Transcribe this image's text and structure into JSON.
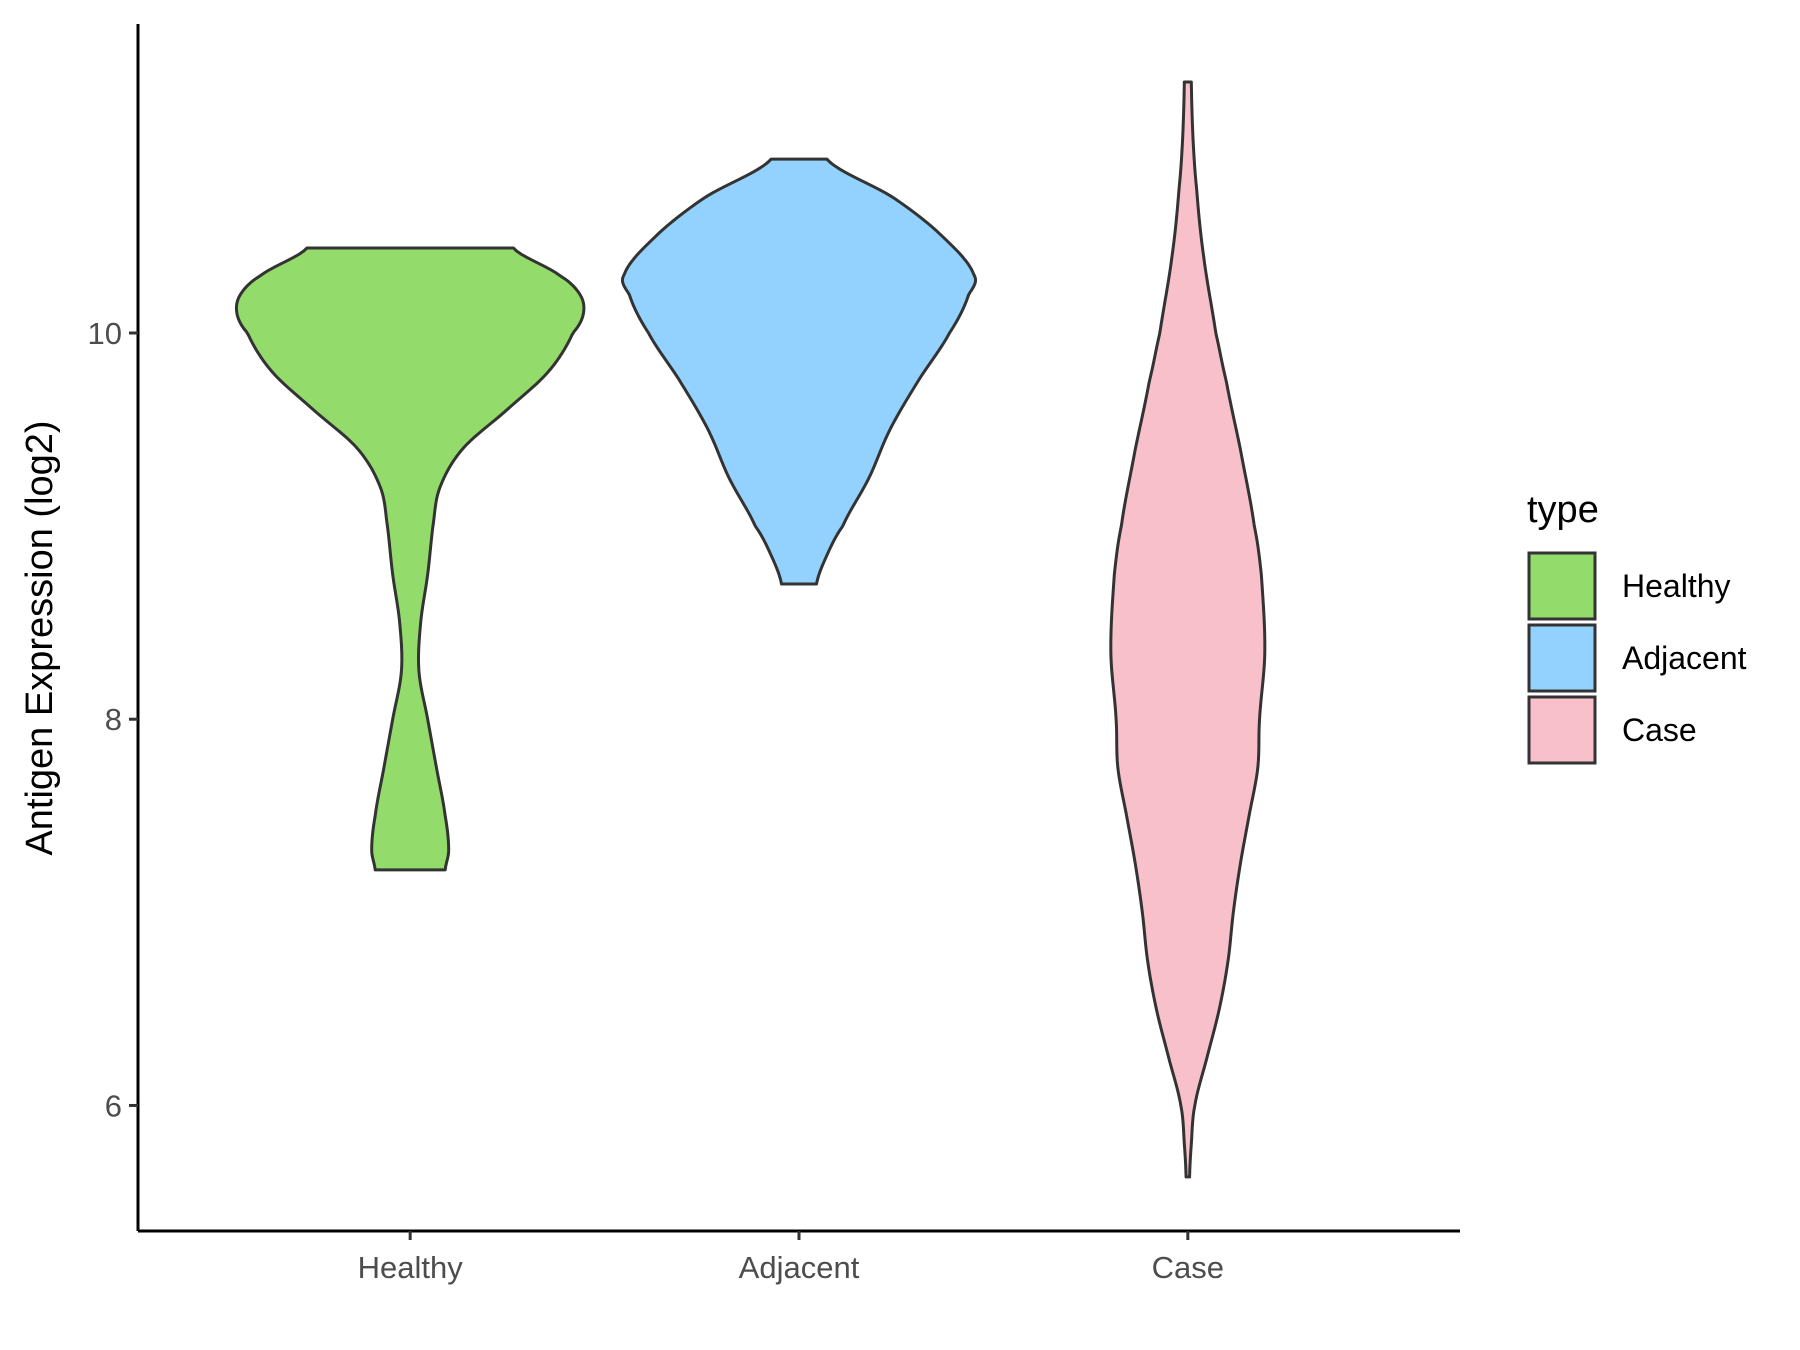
{
  "chart_data": {
    "type": "violin",
    "title": "",
    "xlabel": "",
    "ylabel": "Antigen Expression (log2)",
    "categories": [
      "Healthy",
      "Adjacent",
      "Case"
    ],
    "yticks": [
      "6",
      "8",
      "10"
    ],
    "ylim": [
      5.35,
      11.6
    ],
    "grid": false,
    "legend": {
      "title": "type",
      "position": "right",
      "items": [
        {
          "label": "Healthy",
          "color": "#93dc6b"
        },
        {
          "label": "Adjacent",
          "color": "#93d2fe"
        },
        {
          "label": "Case",
          "color": "#f7c0cb"
        }
      ]
    },
    "series": [
      {
        "category": "Healthy",
        "color": "#93dc6b",
        "y_min": 7.22,
        "y_max": 10.44,
        "density_profile": [
          [
            7.22,
            0.2
          ],
          [
            7.32,
            0.22
          ],
          [
            7.5,
            0.2
          ],
          [
            7.75,
            0.15
          ],
          [
            8.0,
            0.1
          ],
          [
            8.25,
            0.05
          ],
          [
            8.5,
            0.06
          ],
          [
            8.75,
            0.1
          ],
          [
            9.0,
            0.13
          ],
          [
            9.2,
            0.17
          ],
          [
            9.4,
            0.3
          ],
          [
            9.6,
            0.55
          ],
          [
            9.8,
            0.79
          ],
          [
            10.0,
            0.93
          ],
          [
            10.1,
            0.99
          ],
          [
            10.2,
            0.97
          ],
          [
            10.3,
            0.85
          ],
          [
            10.44,
            0.59
          ]
        ]
      },
      {
        "category": "Adjacent",
        "color": "#93d2fe",
        "y_min": 8.7,
        "y_max": 10.9,
        "density_profile": [
          [
            8.7,
            0.1
          ],
          [
            8.85,
            0.16
          ],
          [
            9.0,
            0.25
          ],
          [
            9.25,
            0.4
          ],
          [
            9.5,
            0.52
          ],
          [
            9.75,
            0.68
          ],
          [
            10.0,
            0.86
          ],
          [
            10.2,
            0.97
          ],
          [
            10.3,
            1.0
          ],
          [
            10.5,
            0.82
          ],
          [
            10.7,
            0.54
          ],
          [
            10.9,
            0.16
          ]
        ]
      },
      {
        "category": "Case",
        "color": "#f7c0cb",
        "y_min": 5.63,
        "y_max": 11.3,
        "density_profile": [
          [
            5.63,
            0.01
          ],
          [
            5.8,
            0.02
          ],
          [
            6.0,
            0.04
          ],
          [
            6.25,
            0.11
          ],
          [
            6.5,
            0.18
          ],
          [
            6.75,
            0.23
          ],
          [
            7.0,
            0.26
          ],
          [
            7.25,
            0.3
          ],
          [
            7.5,
            0.35
          ],
          [
            7.75,
            0.4
          ],
          [
            8.0,
            0.41
          ],
          [
            8.35,
            0.44
          ],
          [
            8.75,
            0.42
          ],
          [
            9.0,
            0.38
          ],
          [
            9.4,
            0.3
          ],
          [
            9.75,
            0.22
          ],
          [
            10.0,
            0.16
          ],
          [
            10.4,
            0.09
          ],
          [
            10.75,
            0.05
          ],
          [
            11.0,
            0.03
          ],
          [
            11.3,
            0.02
          ]
        ]
      }
    ]
  }
}
